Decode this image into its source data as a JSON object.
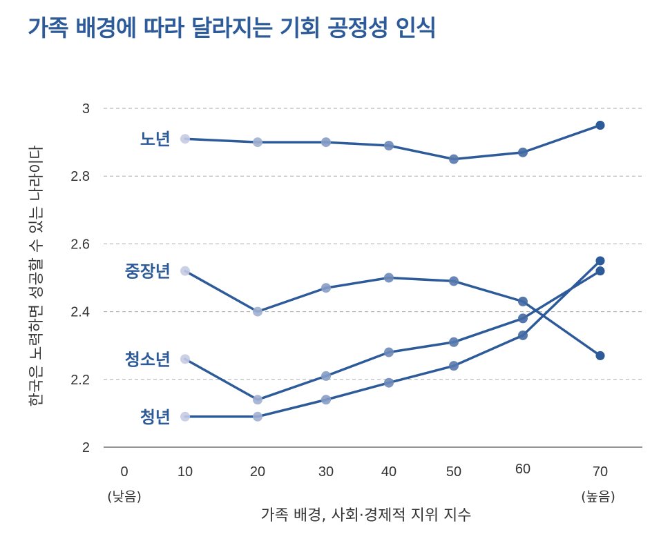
{
  "chart_data": {
    "type": "line",
    "title": "가족 배경에 따라 달라지는 기회 공정성 인식",
    "xlabel": "가족 배경, 사회·경제적 지위 지수",
    "ylabel": "한국은 노력하면 성공할 수 있는 나라이다",
    "x_ticks": [
      "0",
      "10",
      "20",
      "30",
      "40",
      "50",
      "60",
      "70"
    ],
    "x_tick_values": [
      0,
      10,
      20,
      30,
      40,
      50,
      60,
      70
    ],
    "x_low_note": "(낮음)",
    "x_high_note": "(높음)",
    "y_ticks": [
      "3",
      "2.8",
      "2.6",
      "2.4",
      "2.2",
      "2"
    ],
    "y_tick_values": [
      3,
      2.8,
      2.6,
      2.4,
      2.2,
      2
    ],
    "ylim": [
      2,
      3
    ],
    "xlim": [
      0,
      70
    ],
    "grid": "horizontal-dashed",
    "x": [
      10,
      20,
      30,
      40,
      50,
      60,
      70
    ],
    "series": [
      {
        "name": "노년",
        "values": [
          2.91,
          2.9,
          2.9,
          2.89,
          2.85,
          2.87,
          2.95
        ]
      },
      {
        "name": "중장년",
        "values": [
          2.52,
          2.4,
          2.47,
          2.5,
          2.49,
          2.43,
          2.27
        ]
      },
      {
        "name": "청소년",
        "values": [
          2.26,
          2.14,
          2.21,
          2.28,
          2.31,
          2.38,
          2.52
        ]
      },
      {
        "name": "청년",
        "values": [
          2.09,
          2.09,
          2.14,
          2.19,
          2.24,
          2.33,
          2.55
        ]
      }
    ],
    "colors": {
      "line": "#2d5a99",
      "title": "#2d5a99",
      "marker_start": "#c5cbe4",
      "marker_end": "#2d5a99",
      "grid": "#aaaaaa",
      "axis": "#555555"
    }
  }
}
